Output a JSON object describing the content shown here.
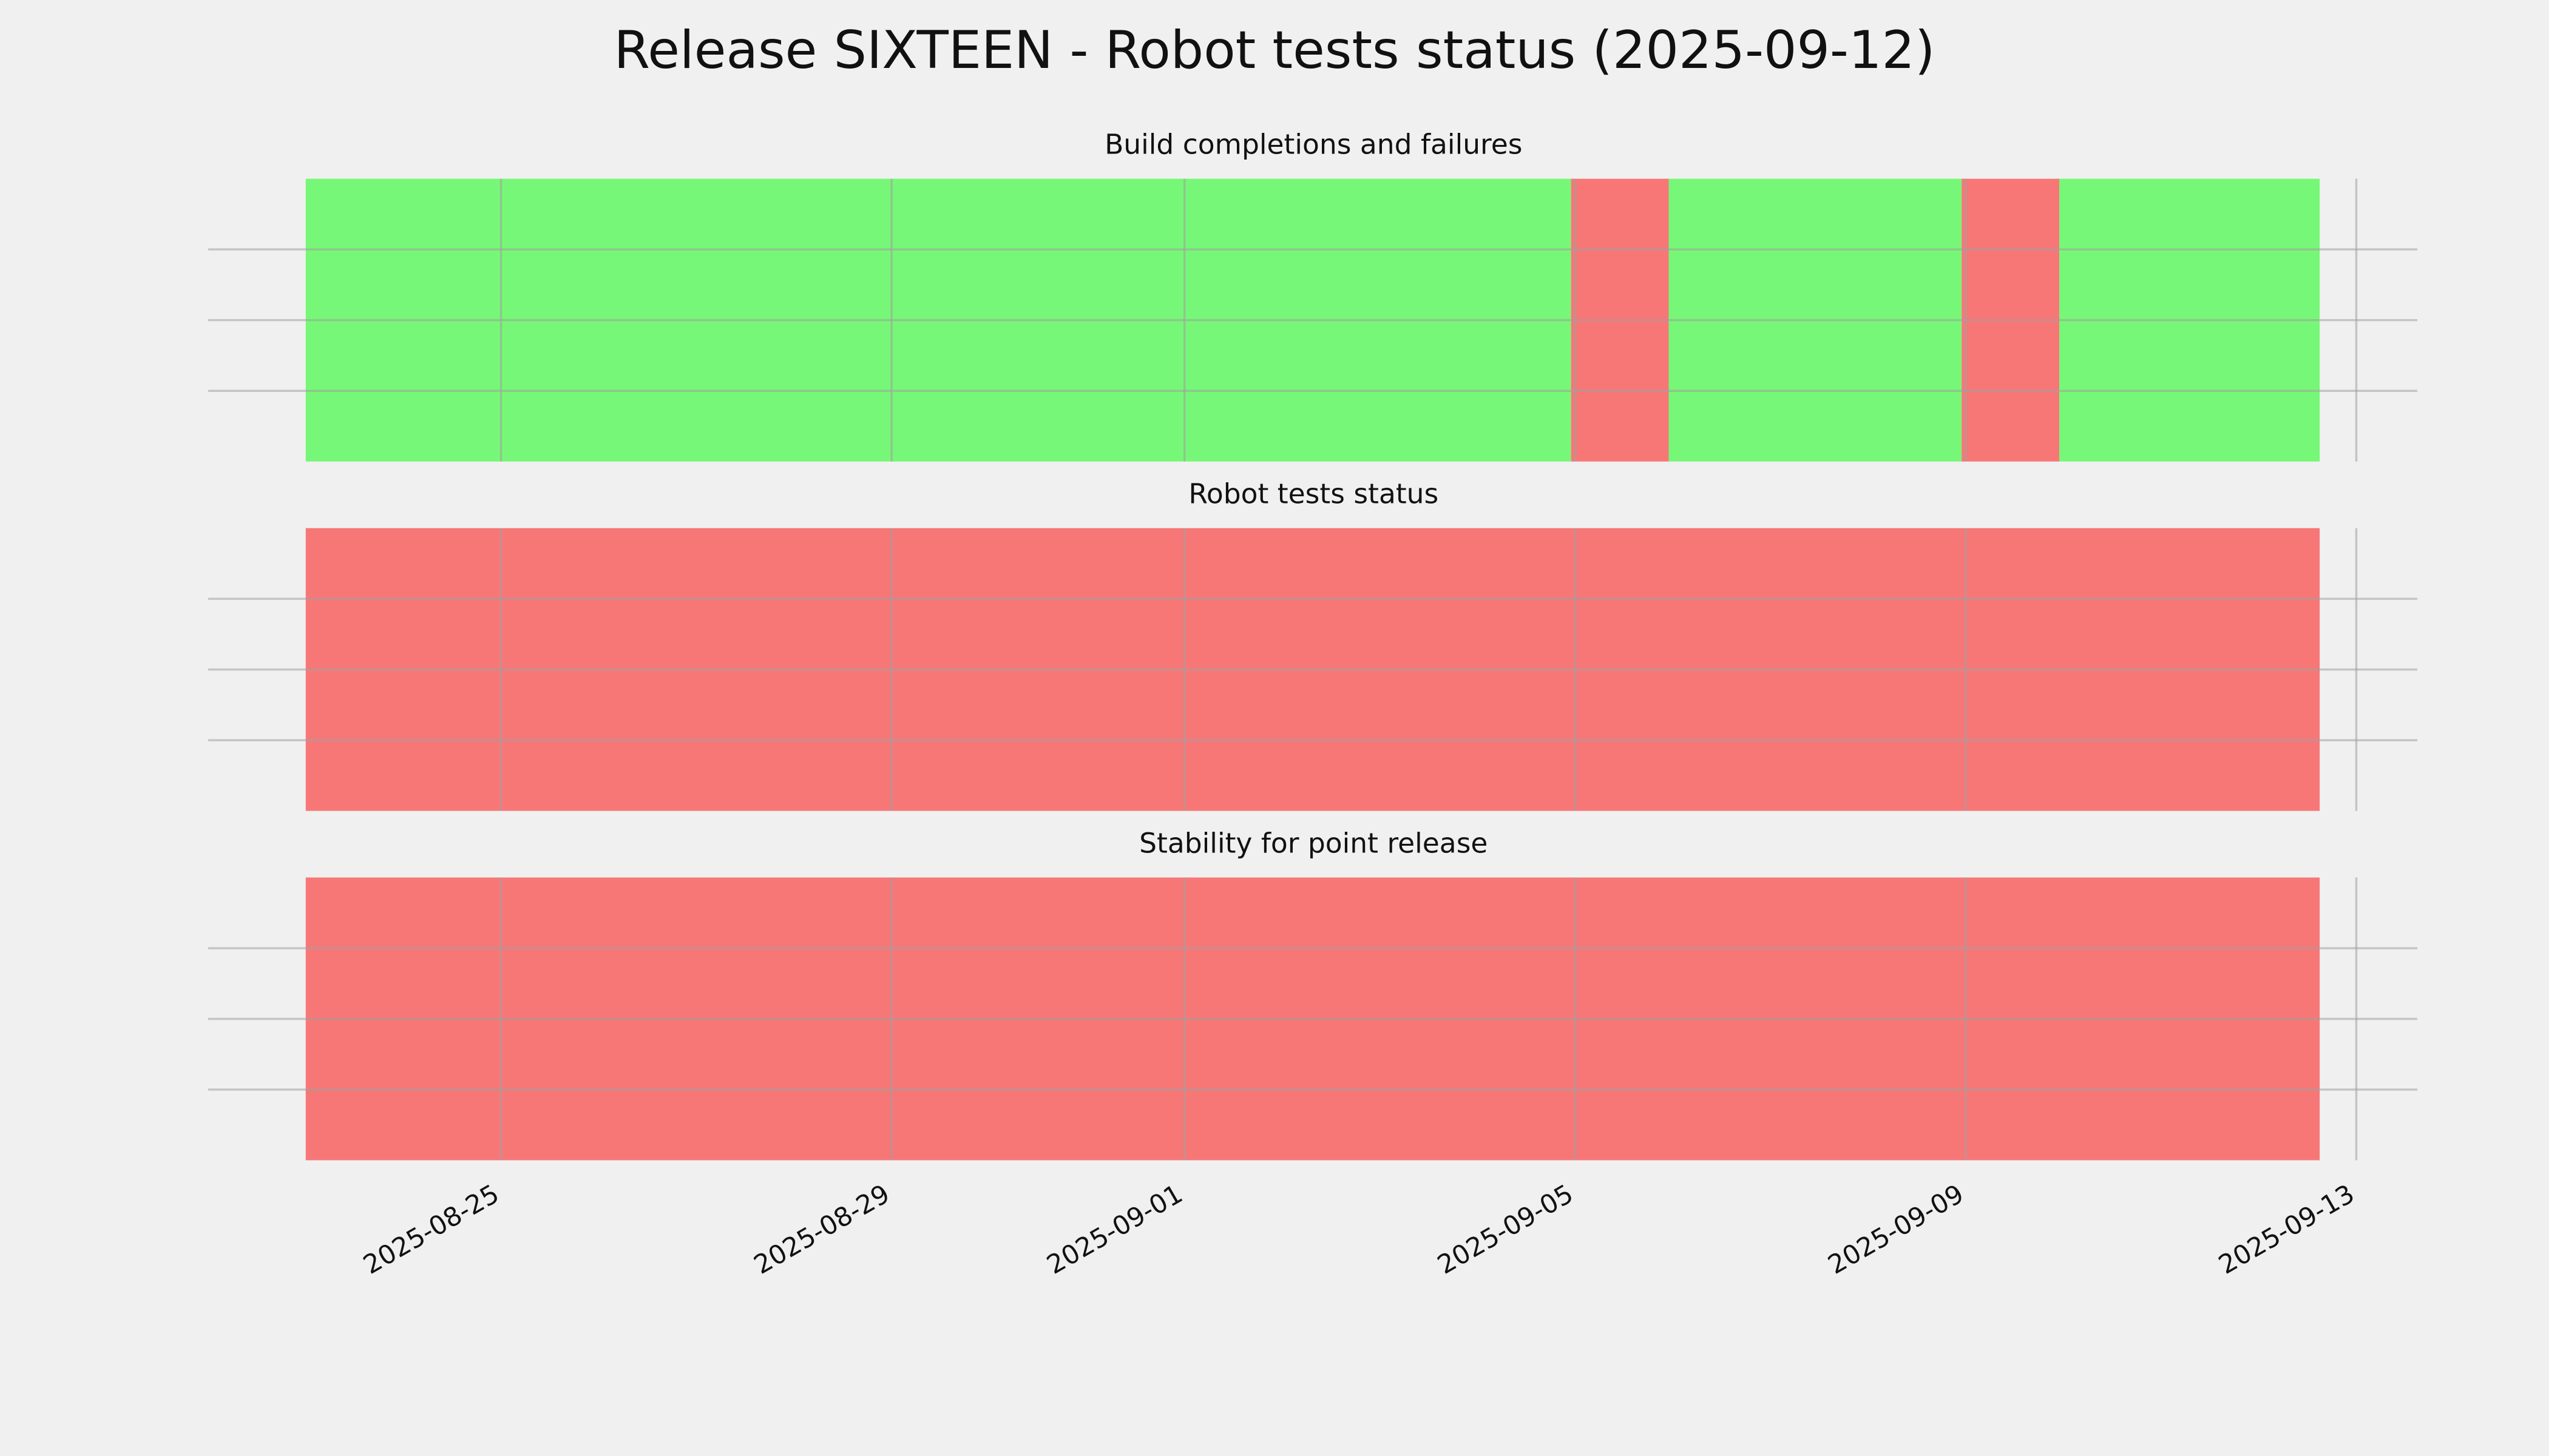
{
  "title": "Release SIXTEEN - Robot tests status (2025-09-12)",
  "chart_data": [
    {
      "type": "timeline",
      "title": "Build completions and failures",
      "xlim": [
        "2025-08-22T00:00",
        "2025-09-13T15:00"
      ],
      "xticks": [
        "2025-08-25",
        "2025-08-29",
        "2025-09-01",
        "2025-09-05",
        "2025-09-09",
        "2025-09-13"
      ],
      "ylim": [
        0,
        1
      ],
      "yticks": [
        0.25,
        0.5,
        0.75
      ],
      "grid": true,
      "spans": [
        {
          "start": "2025-08-23T00:00",
          "end": "2025-09-04T23:00",
          "color": "#77f777"
        },
        {
          "start": "2025-09-04T23:00",
          "end": "2025-09-05T23:00",
          "color": "#f77777"
        },
        {
          "start": "2025-09-05T23:00",
          "end": "2025-09-08T23:00",
          "color": "#77f777"
        },
        {
          "start": "2025-09-08T23:00",
          "end": "2025-09-09T23:00",
          "color": "#f77777"
        },
        {
          "start": "2025-09-09T23:00",
          "end": "2025-09-12T15:00",
          "color": "#77f777"
        }
      ]
    },
    {
      "type": "timeline",
      "title": "Robot tests status",
      "xlim": [
        "2025-08-22T00:00",
        "2025-09-13T15:00"
      ],
      "xticks": [
        "2025-08-25",
        "2025-08-29",
        "2025-09-01",
        "2025-09-05",
        "2025-09-09",
        "2025-09-13"
      ],
      "ylim": [
        0,
        1
      ],
      "yticks": [
        0.25,
        0.5,
        0.75
      ],
      "grid": true,
      "spans": [
        {
          "start": "2025-08-23T00:00",
          "end": "2025-09-12T15:00",
          "color": "#f77777"
        }
      ]
    },
    {
      "type": "timeline",
      "title": "Stability for point release",
      "xlim": [
        "2025-08-22T00:00",
        "2025-09-13T15:00"
      ],
      "xticks": [
        "2025-08-25",
        "2025-08-29",
        "2025-09-01",
        "2025-09-05",
        "2025-09-09",
        "2025-09-13"
      ],
      "ylim": [
        0,
        1
      ],
      "yticks": [
        0.25,
        0.5,
        0.75
      ],
      "grid": true,
      "spans": [
        {
          "start": "2025-08-23T00:00",
          "end": "2025-09-12T15:00",
          "color": "#f77777"
        }
      ]
    }
  ]
}
